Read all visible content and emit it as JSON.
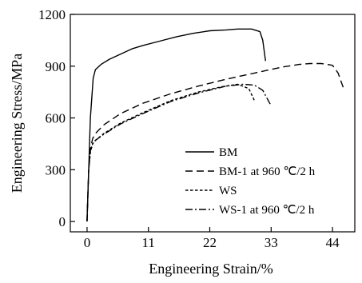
{
  "chart_data": {
    "type": "line",
    "title": "",
    "xlabel": "Engineering Strain/%",
    "ylabel": "Engineering Stress/MPa",
    "xlim": [
      -3,
      48
    ],
    "ylim": [
      -60,
      1200
    ],
    "xticks": [
      0,
      11,
      22,
      33,
      44
    ],
    "yticks": [
      0,
      300,
      600,
      900,
      1200
    ],
    "grid": false,
    "legend_position": "lower-right",
    "series": [
      {
        "name": "BM",
        "style": "solid",
        "x": [
          0,
          0.6,
          1.1,
          1.5,
          2.5,
          4,
          6,
          8,
          10,
          13,
          16,
          19,
          22,
          25,
          27,
          29.5,
          31,
          31.5,
          32
        ],
        "y": [
          0,
          600,
          830,
          880,
          910,
          940,
          970,
          1000,
          1020,
          1045,
          1070,
          1090,
          1105,
          1110,
          1115,
          1115,
          1100,
          1050,
          930
        ]
      },
      {
        "name": "BM-1 at 960 ℃/2 h",
        "style": "dashed",
        "x": [
          0,
          0.3,
          0.6,
          1,
          1.5,
          3,
          6,
          10,
          15,
          20,
          25,
          30,
          35,
          38,
          40,
          42,
          44,
          45,
          46
        ],
        "y": [
          0,
          300,
          420,
          480,
          510,
          560,
          625,
          685,
          740,
          785,
          825,
          860,
          895,
          910,
          915,
          915,
          905,
          860,
          770
        ]
      },
      {
        "name": "WS",
        "style": "dotted",
        "x": [
          0,
          0.3,
          0.6,
          1,
          1.5,
          3,
          6,
          10,
          15,
          20,
          24,
          27,
          29,
          30
        ],
        "y": [
          0,
          300,
          400,
          450,
          470,
          510,
          570,
          630,
          700,
          750,
          780,
          795,
          770,
          700
        ]
      },
      {
        "name": "WS-1 at 960 ℃/2 h",
        "style": "dashdot",
        "x": [
          0,
          0.3,
          0.6,
          1,
          1.5,
          3,
          6,
          10,
          15,
          20,
          25,
          28,
          30,
          31.5,
          33
        ],
        "y": [
          0,
          300,
          410,
          450,
          470,
          505,
          565,
          625,
          695,
          745,
          785,
          795,
          790,
          760,
          670
        ]
      }
    ]
  }
}
